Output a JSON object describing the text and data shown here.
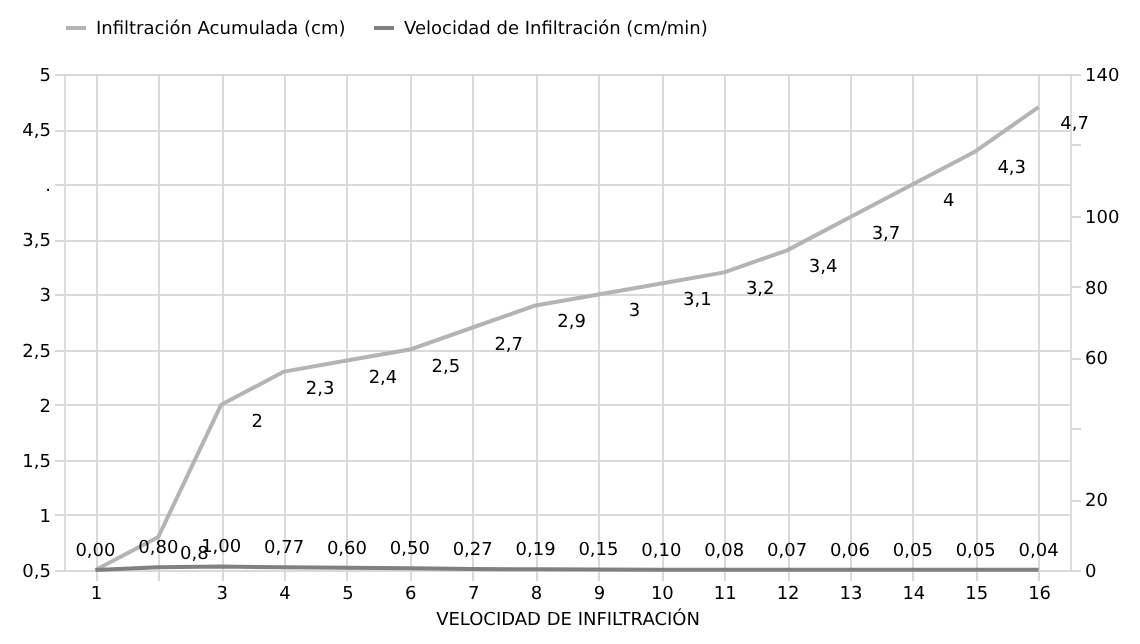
{
  "chart_data": {
    "type": "line",
    "categories": [
      "1",
      null,
      "3",
      "4",
      "5",
      "6",
      "7",
      "8",
      "9",
      "10",
      "11",
      "12",
      "13",
      "14",
      "15",
      "16"
    ],
    "xlabel": "VELOCIDAD DE INFILTRACIÓN",
    "series": [
      {
        "name": "Infiltración Acumulada (cm)",
        "color": "#b4b4b4",
        "values": [
          0.5,
          0.8,
          2,
          2.3,
          2.4,
          2.5,
          2.7,
          2.9,
          3,
          3.1,
          3.2,
          3.4,
          3.7,
          4,
          4.3,
          4.7
        ],
        "value_labels": [
          null,
          "0,8",
          "2",
          "2,3",
          "2,4",
          "2,5",
          "2,7",
          "2,9",
          "3",
          "3,1",
          "3,2",
          "3,4",
          "3,7",
          "4",
          "4,3",
          "4,7"
        ]
      },
      {
        "name": "Velocidad de Infiltración (cm/min)",
        "color": "#808080",
        "axis": "y2",
        "values": [
          0,
          0.8,
          1,
          0.77,
          0.6,
          0.5,
          0.27,
          0.19,
          0.15,
          0.1,
          0.08,
          0.07,
          0.06,
          0.05,
          0.05,
          0.04
        ],
        "value_labels": [
          "0,00",
          "0,80",
          "1,00",
          "0,77",
          "0,60",
          "0,50",
          "0,27",
          "0,19",
          "0,15",
          "0,10",
          "0,08",
          "0,07",
          "0,06",
          "0,05",
          "0,05",
          "0,04"
        ]
      }
    ],
    "ylim": [
      0.5,
      5
    ],
    "yticks": [
      {
        "value": 0.5,
        "label": "0,5"
      },
      1,
      {
        "value": 1.5,
        "label": "1,5"
      },
      2,
      {
        "value": 2.5,
        "label": "2,5"
      },
      3,
      {
        "value": 3.5,
        "label": "3,5"
      },
      {
        "value": 4,
        "label": "."
      },
      {
        "value": 4.5,
        "label": "4,5"
      },
      5
    ],
    "y2lim": [
      0,
      140
    ],
    "y2ticks": [
      0,
      20,
      {
        "value": 40,
        "label": null
      },
      60,
      80,
      100,
      {
        "value": 120,
        "label": null
      },
      140
    ],
    "grid": true,
    "legend": "top",
    "marker": "none",
    "line_style": "solid"
  }
}
